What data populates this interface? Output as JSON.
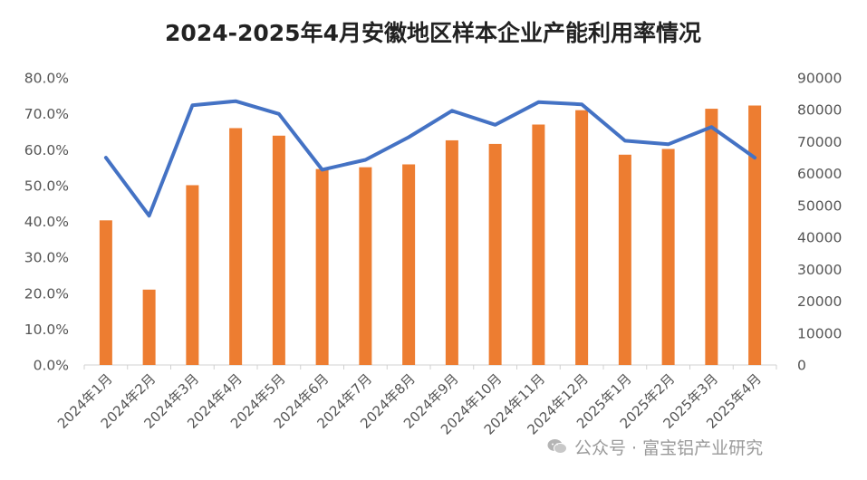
{
  "chart_data": {
    "type": "bar",
    "title": "2024-2025年4月安徽地区样本企业产能利用率情况",
    "categories": [
      "2024年1月",
      "2024年2月",
      "2024年3月",
      "2024年4月",
      "2024年5月",
      "2024年6月",
      "2024年7月",
      "2024年8月",
      "2024年9月",
      "2024年10月",
      "2024年11月",
      "2024年12月",
      "2025年1月",
      "2025年2月",
      "2025年3月",
      "2025年4月"
    ],
    "series": [
      {
        "type": "bar",
        "axis": "left",
        "color": "#ED7D31",
        "values": [
          40.3,
          21.0,
          50.1,
          66.0,
          63.9,
          54.6,
          55.1,
          55.9,
          62.6,
          61.6,
          67.0,
          71.0,
          58.6,
          60.2,
          71.4,
          72.3
        ]
      },
      {
        "type": "line",
        "axis": "right",
        "color": "#4472C4",
        "values": [
          65000,
          46800,
          81400,
          82700,
          78700,
          61200,
          64300,
          71400,
          79700,
          75300,
          82400,
          81700,
          70300,
          69200,
          74600,
          65000
        ]
      }
    ],
    "y_left": {
      "min": 0,
      "max": 80,
      "ticks": [
        "0.0%",
        "10.0%",
        "20.0%",
        "30.0%",
        "40.0%",
        "50.0%",
        "60.0%",
        "70.0%",
        "80.0%"
      ]
    },
    "y_right": {
      "min": 0,
      "max": 90000,
      "ticks": [
        "0",
        "10000",
        "20000",
        "30000",
        "40000",
        "50000",
        "60000",
        "70000",
        "80000",
        "90000"
      ]
    },
    "grid": false,
    "legend": "none"
  },
  "watermark": {
    "icon": "wechat-icon",
    "source": "公众号 · 富宝铝产业研究"
  }
}
